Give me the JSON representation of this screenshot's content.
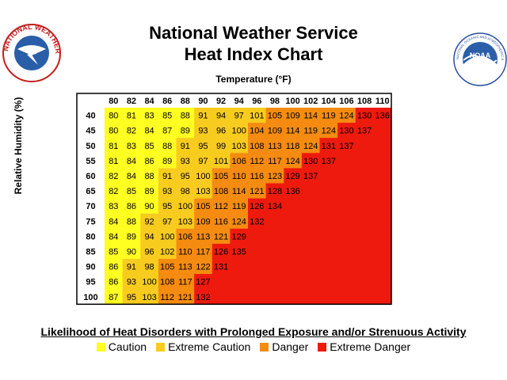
{
  "header": {
    "title_line1": "National Weather Service",
    "title_line2": "Heat Index Chart",
    "nws_logo_text": "NATIONAL WEATHER SERVICE",
    "noaa_logo_text": "NOAA",
    "noaa_ring_text": "NATIONAL OCEANIC AND ATMOSPHERIC ADMINISTRATION · U.S. DEPARTMENT OF COMMERCE"
  },
  "chart_data": {
    "type": "heatmap",
    "title": "Heat Index Chart",
    "xlabel": "Temperature (°F)",
    "ylabel": "Relative Humidity (%)",
    "x": [
      80,
      82,
      84,
      86,
      88,
      90,
      92,
      94,
      96,
      98,
      100,
      102,
      104,
      106,
      108,
      110
    ],
    "y": [
      40,
      45,
      50,
      55,
      60,
      65,
      70,
      75,
      80,
      85,
      90,
      95,
      100
    ],
    "values": [
      [
        80,
        81,
        83,
        85,
        88,
        91,
        94,
        97,
        101,
        105,
        109,
        114,
        119,
        124,
        130,
        136
      ],
      [
        80,
        82,
        84,
        87,
        89,
        93,
        96,
        100,
        104,
        109,
        114,
        119,
        124,
        130,
        137,
        null
      ],
      [
        81,
        83,
        85,
        88,
        91,
        95,
        99,
        103,
        108,
        113,
        118,
        124,
        131,
        137,
        null,
        null
      ],
      [
        81,
        84,
        86,
        89,
        93,
        97,
        101,
        106,
        112,
        117,
        124,
        130,
        137,
        null,
        null,
        null
      ],
      [
        82,
        84,
        88,
        91,
        95,
        100,
        105,
        110,
        116,
        123,
        129,
        137,
        null,
        null,
        null,
        null
      ],
      [
        82,
        85,
        89,
        93,
        98,
        103,
        108,
        114,
        121,
        128,
        136,
        null,
        null,
        null,
        null,
        null
      ],
      [
        83,
        86,
        90,
        95,
        100,
        105,
        112,
        119,
        126,
        134,
        null,
        null,
        null,
        null,
        null,
        null
      ],
      [
        84,
        88,
        92,
        97,
        103,
        109,
        116,
        124,
        132,
        null,
        null,
        null,
        null,
        null,
        null,
        null
      ],
      [
        84,
        89,
        94,
        100,
        106,
        113,
        121,
        129,
        null,
        null,
        null,
        null,
        null,
        null,
        null,
        null
      ],
      [
        85,
        90,
        96,
        102,
        110,
        117,
        126,
        135,
        null,
        null,
        null,
        null,
        null,
        null,
        null,
        null
      ],
      [
        86,
        91,
        98,
        105,
        113,
        122,
        131,
        null,
        null,
        null,
        null,
        null,
        null,
        null,
        null,
        null
      ],
      [
        86,
        93,
        100,
        108,
        117,
        127,
        null,
        null,
        null,
        null,
        null,
        null,
        null,
        null,
        null,
        null
      ],
      [
        87,
        95,
        103,
        112,
        121,
        132,
        null,
        null,
        null,
        null,
        null,
        null,
        null,
        null,
        null,
        null
      ]
    ],
    "categories": [
      {
        "name": "Caution",
        "min": 80,
        "max": 90,
        "color": "#FFFF22"
      },
      {
        "name": "Extreme Caution",
        "min": 91,
        "max": 103,
        "color": "#F7CC1F"
      },
      {
        "name": "Danger",
        "min": 104,
        "max": 124,
        "color": "#F58B10"
      },
      {
        "name": "Extreme Danger",
        "min": 125,
        "max": null,
        "color": "#EE1A0E"
      }
    ],
    "empty_cell_color": "#EE1A0E"
  },
  "legend": {
    "title": "Likelihood of Heat Disorders with Prolonged Exposure and/or Strenuous Activity",
    "items": [
      {
        "label": "Caution",
        "color": "#FFFF22"
      },
      {
        "label": "Extreme Caution",
        "color": "#F7CC1F"
      },
      {
        "label": "Danger",
        "color": "#F58B10"
      },
      {
        "label": "Extreme Danger",
        "color": "#EE1A0E"
      }
    ]
  }
}
